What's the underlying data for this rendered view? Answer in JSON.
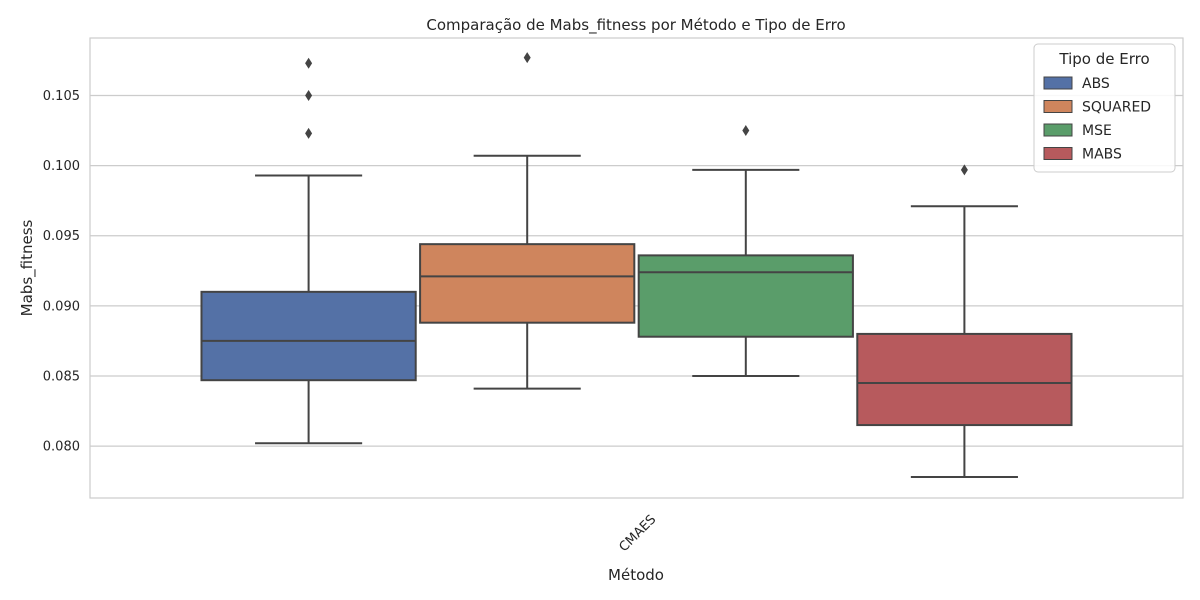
{
  "chart_data": {
    "type": "box",
    "title": "Comparação de Mabs_fitness por Método e Tipo de Erro",
    "xlabel": "Método",
    "ylabel": "Mabs_fitness",
    "categories": [
      "CMAES"
    ],
    "ylim": [
      0.0763,
      0.1091
    ],
    "yticks": [
      0.08,
      0.085,
      0.09,
      0.095,
      0.1,
      0.105
    ],
    "ytick_labels": [
      "0.080",
      "0.085",
      "0.090",
      "0.095",
      "0.100",
      "0.105"
    ],
    "grid": true,
    "legend": {
      "title": "Tipo de Erro",
      "placement": "top-right"
    },
    "series": [
      {
        "name": "ABS",
        "color": "#5471a6",
        "whisker_low": 0.0802,
        "q1": 0.0847,
        "median": 0.0875,
        "q3": 0.091,
        "whisker_high": 0.0993,
        "outliers": [
          0.1023,
          0.105,
          0.1073
        ]
      },
      {
        "name": "SQUARED",
        "color": "#cf855d",
        "whisker_low": 0.0841,
        "q1": 0.0888,
        "median": 0.0921,
        "q3": 0.0944,
        "whisker_high": 0.1007,
        "outliers": [
          0.1077
        ]
      },
      {
        "name": "MSE",
        "color": "#5a9d6a",
        "whisker_low": 0.085,
        "q1": 0.0878,
        "median": 0.0924,
        "q3": 0.0936,
        "whisker_high": 0.0997,
        "outliers": [
          0.1025
        ]
      },
      {
        "name": "MABS",
        "color": "#b75a5d",
        "whisker_low": 0.0778,
        "q1": 0.0815,
        "median": 0.0845,
        "q3": 0.088,
        "whisker_high": 0.0971,
        "outliers": [
          0.0997
        ]
      }
    ]
  }
}
